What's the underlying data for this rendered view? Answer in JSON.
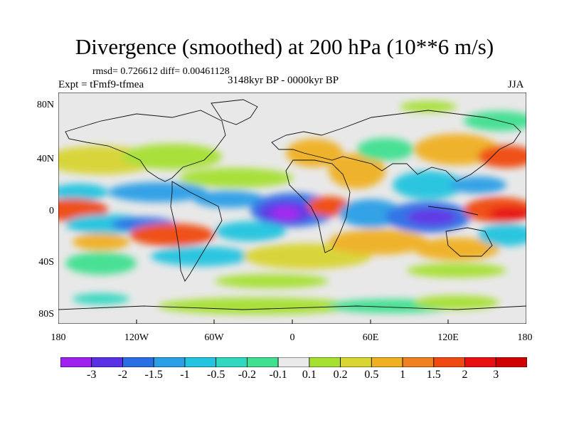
{
  "title": "Divergence (smoothed) at 200 hPa (10**6 m/s)",
  "stats": "rmsd= 0.726612 diff= 0.00461128",
  "experiment": "Expt = tFmf9-tfmea",
  "period": "3148kyr BP - 0000kyr BP",
  "season": "JJA",
  "map": {
    "lat_labels": [
      "80N",
      "40N",
      "0",
      "40S",
      "80S"
    ],
    "lon_labels": [
      "180",
      "120W",
      "60W",
      "0",
      "60E",
      "120E",
      "180"
    ],
    "background": "#e8e8e8"
  },
  "colorbar": {
    "labels": [
      "-3",
      "-2",
      "-1.5",
      "-1",
      "-0.5",
      "-0.2",
      "-0.1",
      "0.1",
      "0.2",
      "0.5",
      "1",
      "1.5",
      "2",
      "3"
    ],
    "colors": [
      "#a020f0",
      "#5a30e6",
      "#2a6ee6",
      "#2a9fe6",
      "#22c4e0",
      "#30d8c0",
      "#40e090",
      "#eaeaea",
      "#a6e030",
      "#d8d430",
      "#f0b020",
      "#f08020",
      "#f04a10",
      "#e81010",
      "#d00000"
    ]
  }
}
